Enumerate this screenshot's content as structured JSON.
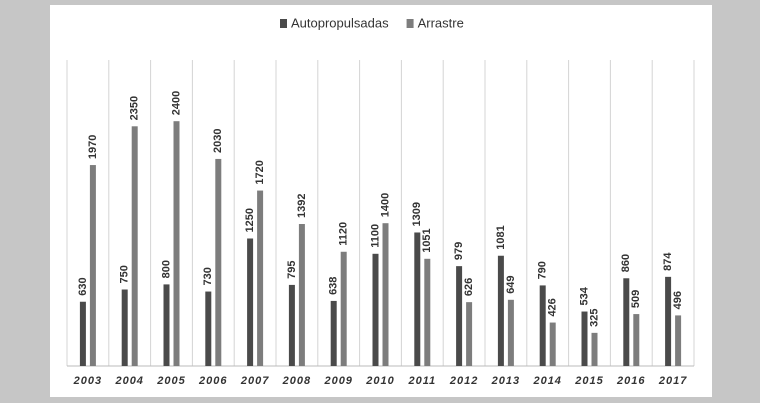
{
  "chart_data": {
    "type": "bar",
    "categories": [
      "2003",
      "2004",
      "2005",
      "2006",
      "2007",
      "2008",
      "2009",
      "2010",
      "2011",
      "2012",
      "2013",
      "2014",
      "2015",
      "2016",
      "2017"
    ],
    "series": [
      {
        "name": "Autopropulsadas",
        "color": "#4a4a4a",
        "values": [
          630,
          750,
          800,
          730,
          1250,
          795,
          638,
          1100,
          1309,
          979,
          1081,
          790,
          534,
          860,
          874
        ]
      },
      {
        "name": "Arrastre",
        "color": "#7d7d7d",
        "values": [
          1970,
          2350,
          2400,
          2030,
          1720,
          1392,
          1120,
          1400,
          1051,
          626,
          649,
          426,
          325,
          509,
          496
        ]
      }
    ],
    "ylim": [
      0,
      3000
    ],
    "grid": true,
    "legend": "top"
  }
}
